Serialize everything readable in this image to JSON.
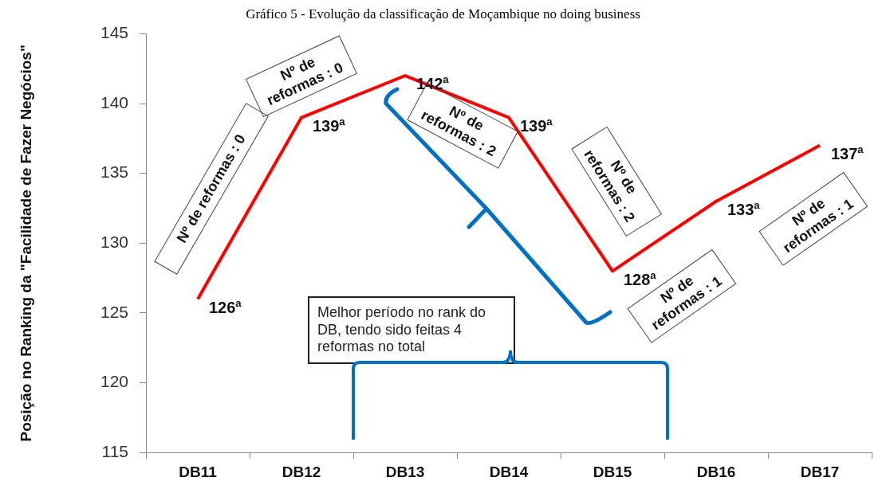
{
  "chart_data": {
    "type": "line",
    "title": "Gráfico 5 - Evolução da classificação de Moçambique no doing business",
    "ylabel": "Posição no Ranking da \"Facilidade de Fazer Negócios\"",
    "categories": [
      "DB11",
      "DB12",
      "DB13",
      "DB14",
      "DB15",
      "DB16",
      "DB17"
    ],
    "series": [
      {
        "color": "#ff0000",
        "values": [
          126,
          139,
          142,
          139,
          128,
          133,
          137
        ],
        "value_labels": [
          "126ª",
          "139ª",
          "142ª",
          "139ª",
          "128ª",
          "133ª",
          "137ª"
        ]
      }
    ],
    "ylim": [
      115,
      145
    ],
    "yticks": [
      115,
      120,
      125,
      130,
      135,
      140,
      145
    ],
    "grid": false,
    "legend": false,
    "marker": "none",
    "line_style": "solid",
    "annotations": [
      "Nº de reformas : 0",
      "Nº de reformas : 0",
      "Nº de reformas : 2",
      "Nº de reformas : 2",
      "Nº de reformas : 1",
      "Nº de reformas : 1",
      "Melhor período no rank do DB, tendo sido feitas 4 reformas no total"
    ]
  }
}
